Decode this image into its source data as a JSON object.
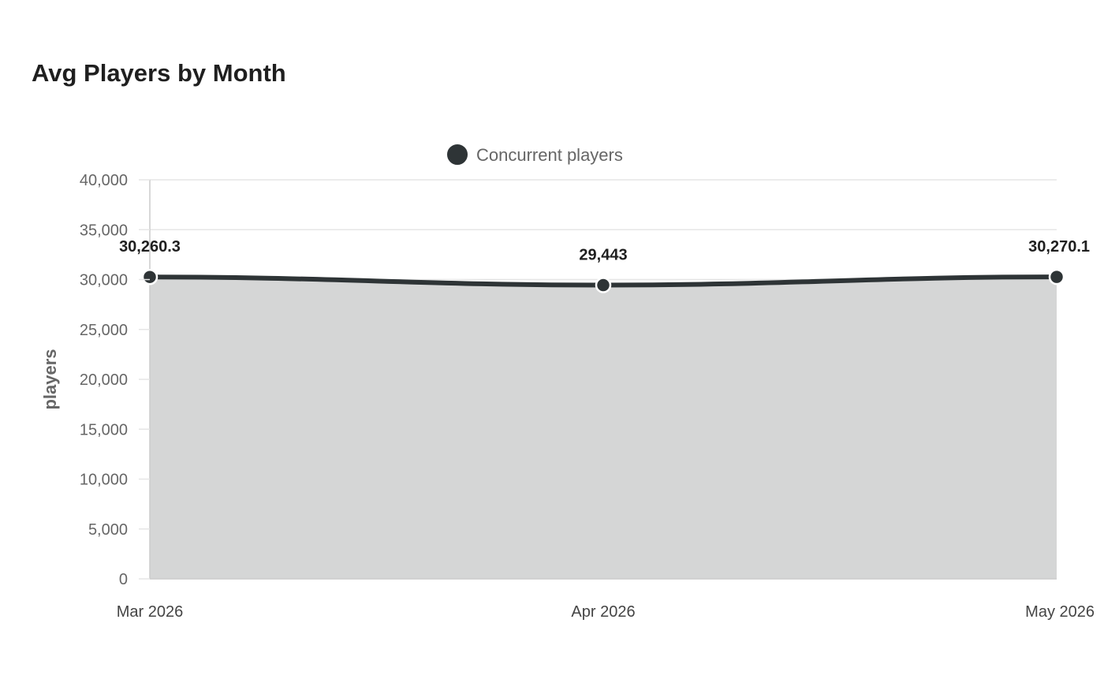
{
  "chart_data": {
    "type": "area",
    "title": "Avg Players by Month",
    "xlabel": "",
    "ylabel": "players",
    "categories": [
      "Mar 2026",
      "Apr 2026",
      "May 2026"
    ],
    "series": [
      {
        "name": "Concurrent players",
        "values": [
          30260.3,
          29443,
          30270.1
        ],
        "data_labels": [
          "30,260.3",
          "29,443",
          "30,270.1"
        ],
        "color": "#2e3436",
        "fill_color": "#d5d6d6"
      }
    ],
    "ylim": [
      0,
      40000
    ],
    "yticks": [
      0,
      5000,
      10000,
      15000,
      20000,
      25000,
      30000,
      35000,
      40000
    ],
    "ytick_labels": [
      "0",
      "5,000",
      "10,000",
      "15,000",
      "20,000",
      "25,000",
      "30,000",
      "35,000",
      "40,000"
    ],
    "grid": true,
    "legend_position": "top-center"
  }
}
